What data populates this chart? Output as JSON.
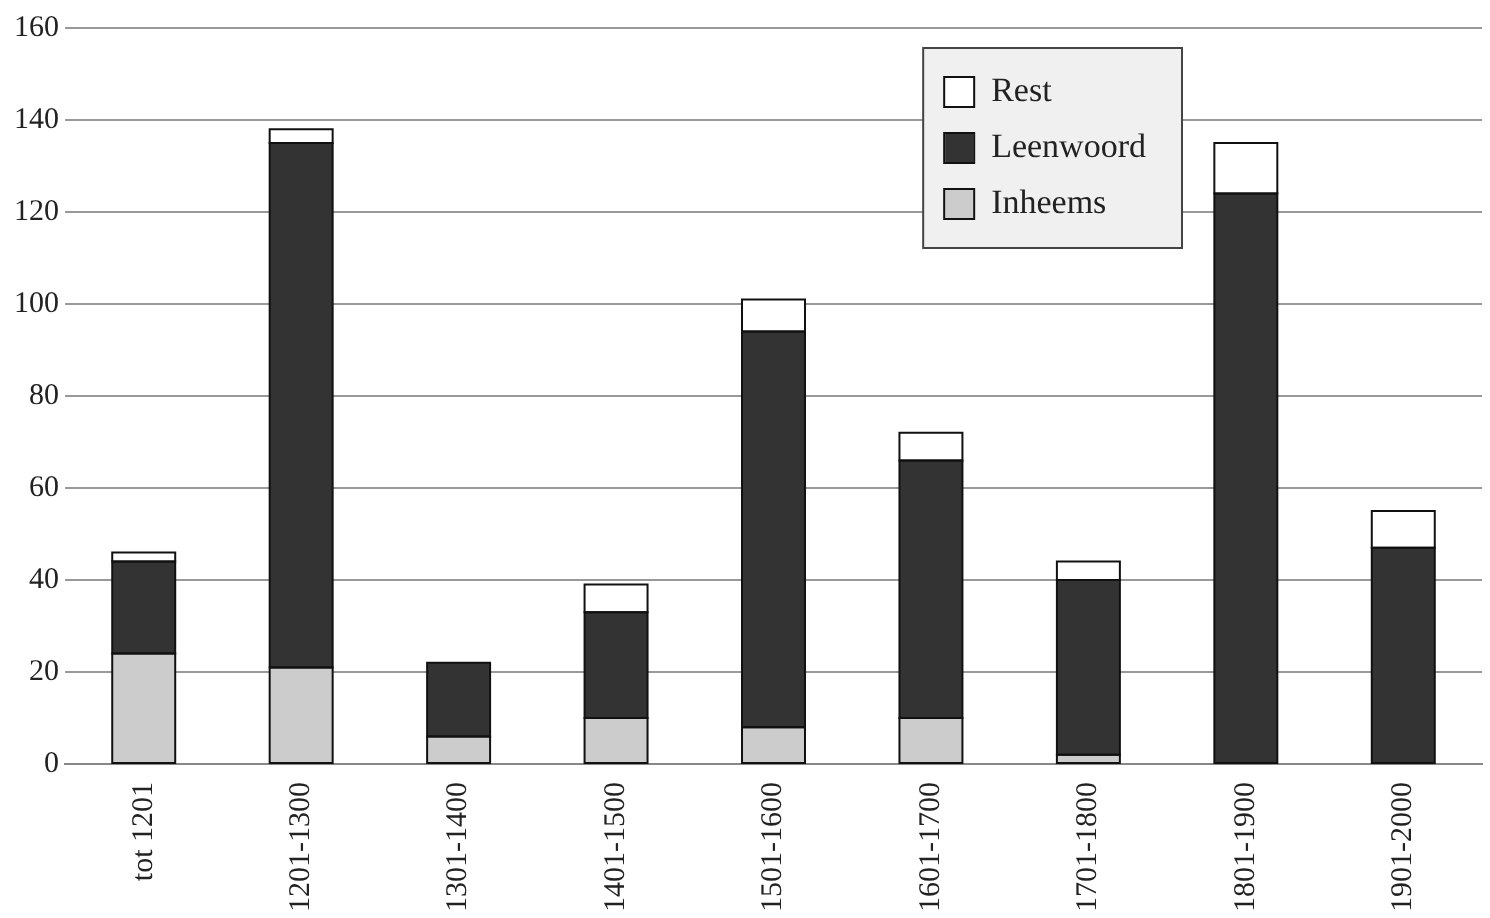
{
  "chart_data": {
    "type": "bar",
    "stacked": true,
    "categories": [
      "tot 1201",
      "1201-1300",
      "1301-1400",
      "1401-1500",
      "1501-1600",
      "1601-1700",
      "1701-1800",
      "1801-1900",
      "1901-2000"
    ],
    "series": [
      {
        "name": "Inheems",
        "color": "#cccccc",
        "values": [
          24,
          21,
          6,
          10,
          8,
          10,
          2,
          0,
          0
        ]
      },
      {
        "name": "Leenwoord",
        "color": "#333333",
        "values": [
          20,
          114,
          16,
          23,
          86,
          56,
          38,
          124,
          47
        ]
      },
      {
        "name": "Rest",
        "color": "#ffffff",
        "values": [
          2,
          3,
          0,
          6,
          7,
          6,
          4,
          11,
          8
        ]
      }
    ],
    "ylim": [
      0,
      160
    ],
    "yticks": [
      0,
      20,
      40,
      60,
      80,
      100,
      120,
      140,
      160
    ],
    "grid": "y",
    "legend": "top right"
  }
}
